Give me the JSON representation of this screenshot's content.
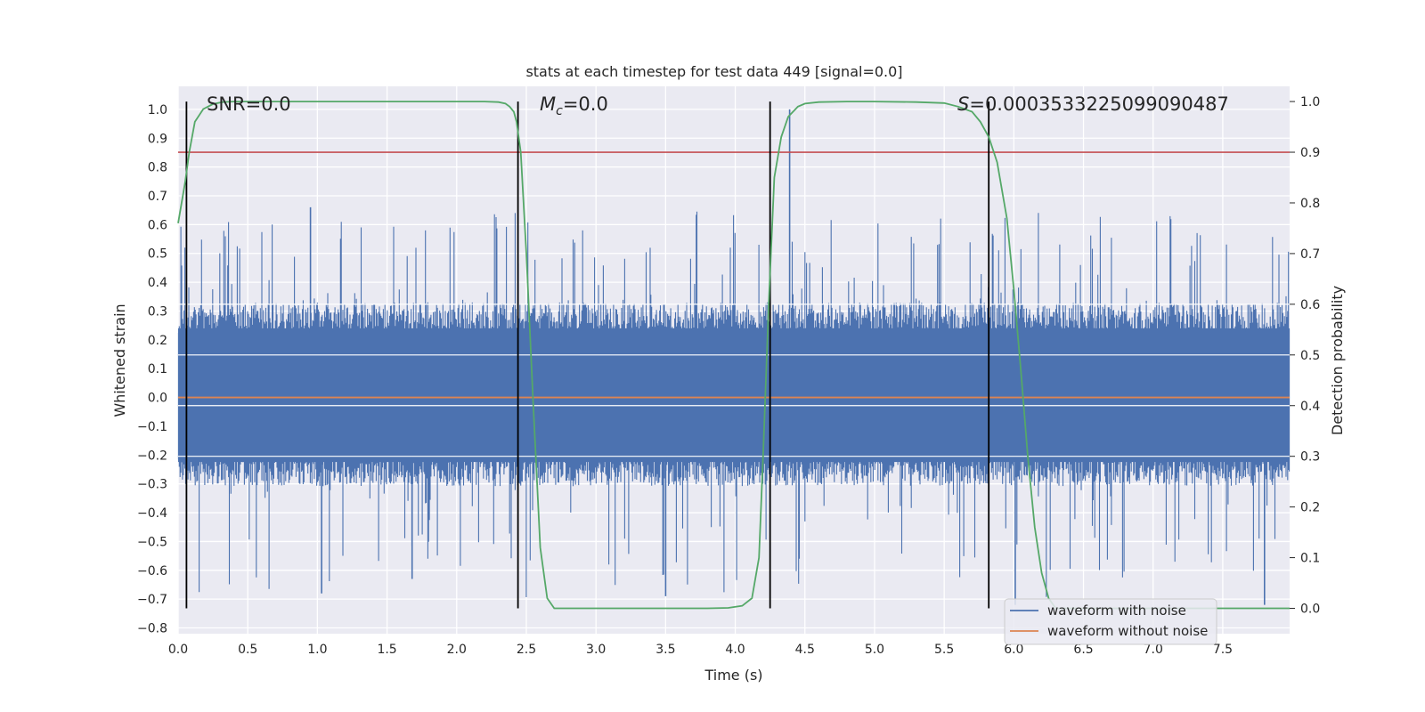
{
  "chart_data": {
    "type": "line",
    "title": "stats at each timestep for test data 449 [signal=0.0]",
    "xlabel": "Time (s)",
    "ylabel": "Whitened strain",
    "y2label": "Detection probability",
    "xlim": [
      0.0,
      7.98
    ],
    "ylim": [
      -0.82,
      1.08
    ],
    "y2lim": [
      -0.05,
      1.03
    ],
    "x_ticks": [
      "0.0",
      "0.5",
      "1.0",
      "1.5",
      "2.0",
      "2.5",
      "3.0",
      "3.5",
      "4.0",
      "4.5",
      "5.0",
      "5.5",
      "6.0",
      "6.5",
      "7.0",
      "7.5"
    ],
    "y_ticks": [
      "−0.8",
      "−0.7",
      "−0.6",
      "−0.5",
      "−0.4",
      "−0.3",
      "−0.2",
      "−0.1",
      "0.0",
      "0.1",
      "0.2",
      "0.3",
      "0.4",
      "0.5",
      "0.6",
      "0.7",
      "0.8",
      "0.9",
      "1.0"
    ],
    "y2_ticks": [
      "0.0",
      "0.1",
      "0.2",
      "0.3",
      "0.4",
      "0.5",
      "0.6",
      "0.7",
      "0.8",
      "0.9",
      "1.0"
    ],
    "grid": true,
    "legend_position": "lower-right",
    "annotations": {
      "snr": "SNR=0.0",
      "mc_symbol": "M",
      "mc_subscript": "c",
      "mc_value": "=0.0",
      "s_symbol": "S",
      "s_value": "=0.0003533225099090487"
    },
    "series": [
      {
        "name": "waveform with noise",
        "axis": "left",
        "color": "#4c72b0",
        "band_typical": [
          -0.28,
          0.3
        ],
        "envelope_max_approx": 0.65,
        "envelope_min_approx": -0.7,
        "peak": {
          "x": 4.39,
          "y": 1.0
        },
        "notes_points": [
          {
            "x": 0.95,
            "y": 0.66
          },
          {
            "x": 1.03,
            "y": -0.68
          },
          {
            "x": 1.68,
            "y": -0.63
          },
          {
            "x": 3.5,
            "y": -0.69
          },
          {
            "x": 6.01,
            "y": -0.72
          },
          {
            "x": 7.8,
            "y": -0.72
          }
        ]
      },
      {
        "name": "waveform without noise",
        "axis": "left",
        "color": "#dd8452",
        "x": [
          0.0,
          7.98
        ],
        "y": [
          0.0,
          0.0
        ]
      },
      {
        "name": "detection probability",
        "axis": "right",
        "color": "#55a868",
        "x": [
          0.0,
          0.05,
          0.08,
          0.12,
          0.18,
          0.25,
          0.32,
          0.4,
          0.5,
          0.7,
          1.0,
          1.5,
          2.0,
          2.2,
          2.3,
          2.35,
          2.38,
          2.41,
          2.43,
          2.46,
          2.5,
          2.55,
          2.6,
          2.65,
          2.7,
          2.8,
          3.0,
          3.5,
          3.8,
          3.95,
          4.05,
          4.12,
          4.17,
          4.2,
          4.24,
          4.28,
          4.33,
          4.38,
          4.45,
          4.5,
          4.6,
          4.8,
          5.0,
          5.3,
          5.5,
          5.6,
          5.7,
          5.76,
          5.82,
          5.88,
          5.95,
          6.0,
          6.05,
          6.1,
          6.15,
          6.2,
          6.25,
          6.3,
          6.35,
          6.4,
          6.5,
          7.0,
          7.5,
          7.98
        ],
        "y": [
          0.76,
          0.84,
          0.9,
          0.96,
          0.985,
          0.995,
          0.999,
          1.0,
          1.0,
          1.0,
          1.0,
          1.0,
          1.0,
          1.0,
          0.999,
          0.996,
          0.99,
          0.98,
          0.96,
          0.9,
          0.7,
          0.4,
          0.12,
          0.02,
          0.0,
          0.0,
          0.0,
          0.0,
          0.0,
          0.001,
          0.005,
          0.02,
          0.1,
          0.3,
          0.6,
          0.85,
          0.93,
          0.97,
          0.99,
          0.996,
          0.999,
          1.0,
          1.0,
          0.999,
          0.997,
          0.99,
          0.98,
          0.96,
          0.93,
          0.88,
          0.77,
          0.63,
          0.47,
          0.3,
          0.16,
          0.07,
          0.02,
          0.0,
          0.0,
          0.0,
          0.0,
          0.0,
          0.0,
          0.0
        ]
      }
    ],
    "horizontal_line": {
      "axis": "right",
      "value": 0.9,
      "color": "#c44e52"
    },
    "vertical_lines": [
      0.06,
      2.44,
      4.25,
      5.82
    ],
    "vertical_lines_y2_range": [
      0.0,
      1.0
    ]
  }
}
